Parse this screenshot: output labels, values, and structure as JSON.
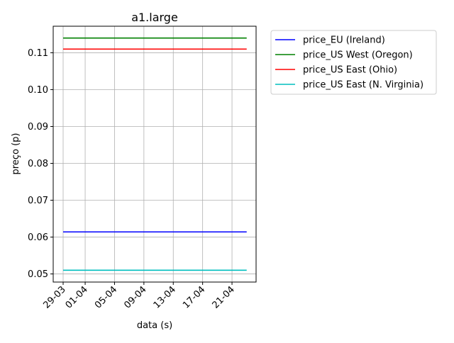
{
  "chart_data": {
    "type": "line",
    "title": "a1.large",
    "xlabel": "data (s)",
    "ylabel": "preço (p)",
    "x": [
      "29-03",
      "23-04"
    ],
    "x_ticks": [
      "29-03",
      "01-04",
      "05-04",
      "09-04",
      "13-04",
      "17-04",
      "21-04"
    ],
    "y_ticks": [
      "0.05",
      "0.06",
      "0.07",
      "0.08",
      "0.09",
      "0.10",
      "0.11"
    ],
    "ylim": [
      0.0478,
      0.1172
    ],
    "grid": true,
    "legend_placement": "outside-right",
    "series": [
      {
        "name": "price_EU (Ireland)",
        "color": "#0000ff",
        "values": [
          0.0614,
          0.0614
        ]
      },
      {
        "name": "price_US West (Oregon)",
        "color": "#008000",
        "values": [
          0.114,
          0.114
        ]
      },
      {
        "name": "price_US East (Ohio)",
        "color": "#ff0000",
        "values": [
          0.111,
          0.111
        ]
      },
      {
        "name": "price_US East (N. Virginia)",
        "color": "#00bfbf",
        "values": [
          0.051,
          0.051
        ]
      }
    ]
  }
}
